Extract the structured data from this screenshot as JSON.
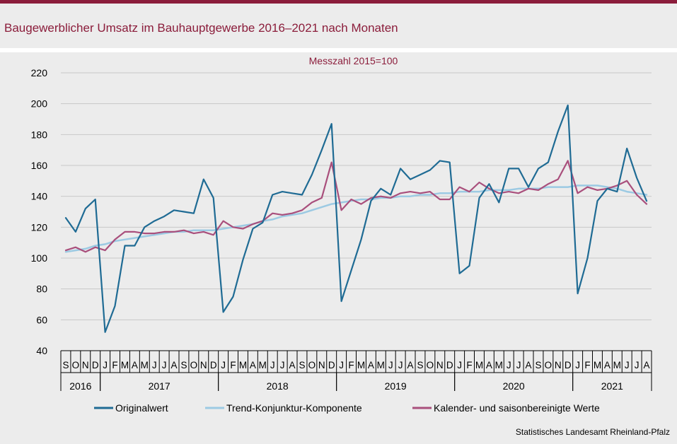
{
  "title": "Baugewerblicher Umsatz im Bauhauptgewerbe 2016–2021 nach Monaten",
  "credit": "Statistisches Landesamt Rheinland-Pfalz",
  "chart_data": {
    "type": "line",
    "subtitle": "Messzahl 2015=100",
    "ylim": [
      40,
      220
    ],
    "yticks": [
      40,
      60,
      80,
      100,
      120,
      140,
      160,
      180,
      200,
      220
    ],
    "grid": "horizontal",
    "legend_position": "bottom",
    "months": [
      "S",
      "O",
      "N",
      "D",
      "J",
      "F",
      "M",
      "A",
      "M",
      "J",
      "J",
      "A",
      "S",
      "O",
      "N",
      "D",
      "J",
      "F",
      "M",
      "A",
      "M",
      "J",
      "J",
      "A",
      "S",
      "O",
      "N",
      "D",
      "J",
      "F",
      "M",
      "A",
      "M",
      "J",
      "J",
      "A",
      "S",
      "O",
      "N",
      "D",
      "J",
      "F",
      "M",
      "A",
      "M",
      "J",
      "J",
      "A",
      "S",
      "O",
      "N",
      "D",
      "J",
      "F",
      "M",
      "A",
      "M",
      "J",
      "J",
      "A"
    ],
    "years": [
      {
        "label": "2016",
        "start": 0,
        "count": 4
      },
      {
        "label": "2017",
        "start": 4,
        "count": 12
      },
      {
        "label": "2018",
        "start": 16,
        "count": 12
      },
      {
        "label": "2019",
        "start": 28,
        "count": 12
      },
      {
        "label": "2020",
        "start": 40,
        "count": 12
      },
      {
        "label": "2021",
        "start": 52,
        "count": 8
      }
    ],
    "series": [
      {
        "name": "Originalwert",
        "color": "#1f6b94",
        "values": [
          126,
          117,
          132,
          138,
          52,
          69,
          108,
          108,
          120,
          124,
          127,
          131,
          130,
          129,
          151,
          139,
          65,
          75,
          99,
          119,
          123,
          141,
          143,
          142,
          141,
          154,
          170,
          187,
          72,
          92,
          112,
          137,
          145,
          141,
          158,
          151,
          154,
          157,
          163,
          162,
          90,
          95,
          139,
          148,
          136,
          158,
          158,
          146,
          158,
          162,
          182,
          199,
          77,
          100,
          137,
          145,
          143,
          171,
          152,
          137
        ]
      },
      {
        "name": "Trend-Konjunktur-Komponente",
        "color": "#9ccae3",
        "values": [
          104,
          105,
          106,
          108,
          109,
          111,
          112,
          113,
          114,
          115,
          116,
          117,
          117,
          118,
          118,
          118,
          119,
          120,
          121,
          122,
          124,
          125,
          127,
          128,
          129,
          131,
          133,
          135,
          136,
          137,
          138,
          138,
          139,
          139,
          140,
          140,
          141,
          141,
          142,
          142,
          143,
          143,
          143,
          144,
          144,
          144,
          145,
          145,
          145,
          146,
          146,
          146,
          147,
          147,
          147,
          146,
          145,
          143,
          142,
          141
        ]
      },
      {
        "name": "Kalender- und saisonbereinigte Werte",
        "color": "#a94f7c",
        "values": [
          105,
          107,
          104,
          107,
          105,
          112,
          117,
          117,
          116,
          116,
          117,
          117,
          118,
          116,
          117,
          115,
          124,
          120,
          119,
          122,
          124,
          129,
          128,
          129,
          131,
          136,
          139,
          162,
          131,
          138,
          135,
          139,
          140,
          139,
          142,
          143,
          142,
          143,
          138,
          138,
          146,
          143,
          149,
          145,
          142,
          143,
          142,
          145,
          144,
          148,
          151,
          163,
          142,
          146,
          144,
          145,
          147,
          150,
          141,
          135
        ]
      }
    ]
  }
}
